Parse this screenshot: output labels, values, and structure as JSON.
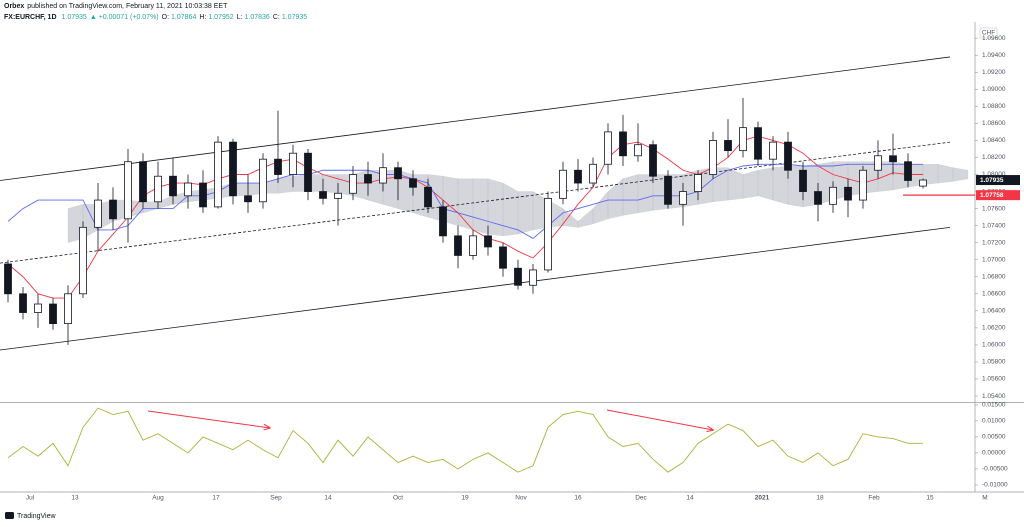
{
  "header": {
    "publisher": "Orbex",
    "published": "published on TradingView.com, February 11, 2021 10:03:38 EET",
    "symbol": "FX:EURCHF, 1D",
    "last": "1.07935",
    "change": "▲ +0.00071 (+0.07%)",
    "ohlc_labels": [
      "O:",
      "H:",
      "L:",
      "C:"
    ],
    "ohlc_values": [
      "1.07864",
      "1.07952",
      "1.07836",
      "1.07935"
    ]
  },
  "footer": {
    "brand": "TradingView"
  },
  "chart_data": {
    "type": "candlestick",
    "currency": "CHF",
    "up_color": "#ffffff",
    "down_color": "#131722",
    "ohlc": [
      [
        1.0695,
        1.07,
        1.065,
        1.066
      ],
      [
        1.066,
        1.0668,
        1.063,
        1.0638
      ],
      [
        1.0638,
        1.066,
        1.062,
        1.0648
      ],
      [
        1.0648,
        1.0655,
        1.0618,
        1.0625
      ],
      [
        1.0625,
        1.067,
        1.06,
        1.066
      ],
      [
        1.066,
        1.0745,
        1.0655,
        1.0738
      ],
      [
        1.0738,
        1.079,
        1.071,
        1.077
      ],
      [
        1.077,
        1.0785,
        1.0735,
        1.0748
      ],
      [
        1.0748,
        1.083,
        1.072,
        1.0815
      ],
      [
        1.0815,
        1.0825,
        1.076,
        1.0768
      ],
      [
        1.0768,
        1.0815,
        1.076,
        1.0798
      ],
      [
        1.0798,
        1.082,
        1.0765,
        1.0775
      ],
      [
        1.0775,
        1.08,
        1.076,
        1.079
      ],
      [
        1.079,
        1.0805,
        1.0755,
        1.0762
      ],
      [
        1.0762,
        1.0845,
        1.076,
        1.0838
      ],
      [
        1.0838,
        1.0842,
        1.0765,
        1.0775
      ],
      [
        1.0775,
        1.08,
        1.0755,
        1.0768
      ],
      [
        1.0768,
        1.0825,
        1.076,
        1.0818
      ],
      [
        1.0818,
        1.0875,
        1.079,
        1.08
      ],
      [
        1.08,
        1.0835,
        1.0785,
        1.0825
      ],
      [
        1.0825,
        1.083,
        1.077,
        1.078
      ],
      [
        1.078,
        1.0795,
        1.0765,
        1.0772
      ],
      [
        1.0772,
        1.079,
        1.074,
        1.0778
      ],
      [
        1.0778,
        1.081,
        1.077,
        1.08
      ],
      [
        1.08,
        1.0815,
        1.0775,
        1.079
      ],
      [
        1.079,
        1.0825,
        1.078,
        1.0808
      ],
      [
        1.0808,
        1.0815,
        1.077,
        1.0795
      ],
      [
        1.0795,
        1.0805,
        1.0775,
        1.0785
      ],
      [
        1.0785,
        1.0795,
        1.0755,
        1.0762
      ],
      [
        1.0762,
        1.077,
        1.072,
        1.0728
      ],
      [
        1.0728,
        1.074,
        1.069,
        1.0705
      ],
      [
        1.0705,
        1.0735,
        1.07,
        1.0728
      ],
      [
        1.0728,
        1.074,
        1.0705,
        1.0715
      ],
      [
        1.0715,
        1.072,
        1.068,
        1.069
      ],
      [
        1.069,
        1.07,
        1.0665,
        1.067
      ],
      [
        1.067,
        1.0695,
        1.066,
        1.0688
      ],
      [
        1.0688,
        1.078,
        1.0685,
        1.0772
      ],
      [
        1.0772,
        1.0815,
        1.0765,
        1.0805
      ],
      [
        1.0805,
        1.0818,
        1.078,
        1.079
      ],
      [
        1.079,
        1.082,
        1.0785,
        1.0812
      ],
      [
        1.0812,
        1.086,
        1.08,
        1.085
      ],
      [
        1.085,
        1.087,
        1.081,
        1.0822
      ],
      [
        1.0822,
        1.086,
        1.0815,
        1.0835
      ],
      [
        1.0835,
        1.084,
        1.079,
        1.0798
      ],
      [
        1.0798,
        1.0805,
        1.076,
        1.0765
      ],
      [
        1.0765,
        1.079,
        1.074,
        1.078
      ],
      [
        1.078,
        1.0805,
        1.077,
        1.08
      ],
      [
        1.08,
        1.085,
        1.0795,
        1.084
      ],
      [
        1.084,
        1.0865,
        1.082,
        1.0828
      ],
      [
        1.0828,
        1.089,
        1.082,
        1.0855
      ],
      [
        1.0855,
        1.0862,
        1.081,
        1.0818
      ],
      [
        1.0818,
        1.0845,
        1.0805,
        1.0838
      ],
      [
        1.0838,
        1.085,
        1.0795,
        1.0805
      ],
      [
        1.0805,
        1.0815,
        1.077,
        1.078
      ],
      [
        1.078,
        1.079,
        1.0745,
        1.0765
      ],
      [
        1.0765,
        1.0792,
        1.0755,
        1.0785
      ],
      [
        1.0785,
        1.0795,
        1.075,
        1.077
      ],
      [
        1.077,
        1.081,
        1.076,
        1.0805
      ],
      [
        1.0805,
        1.084,
        1.0795,
        1.0822
      ],
      [
        1.0822,
        1.0848,
        1.08,
        1.0815
      ],
      [
        1.0815,
        1.0825,
        1.0785,
        1.0793
      ],
      [
        1.07864,
        1.07952,
        1.07836,
        1.07935
      ]
    ],
    "lines": [
      {
        "color": "#f23645",
        "values": [
          1.0695,
          1.068,
          1.066,
          1.0655,
          1.0655,
          1.068,
          1.071,
          1.073,
          1.075,
          1.0775,
          1.0785,
          1.079,
          1.079,
          1.0788,
          1.0795,
          1.08,
          1.08,
          1.0808,
          1.0815,
          1.0818,
          1.0808,
          1.08,
          1.0795,
          1.079,
          1.079,
          1.0795,
          1.0797,
          1.0795,
          1.0785,
          1.077,
          1.0755,
          1.0735,
          1.0725,
          1.072,
          1.071,
          1.0702,
          1.072,
          1.0742,
          1.0765,
          1.0785,
          1.082,
          1.0835,
          1.0838,
          1.083,
          1.0818,
          1.0805,
          1.08,
          1.0808,
          1.082,
          1.084,
          1.0845,
          1.084,
          1.0835,
          1.0825,
          1.081,
          1.08,
          1.0795,
          1.079,
          1.0795,
          1.0802,
          1.08,
          1.08
        ]
      },
      {
        "color": "#5b6af0",
        "values": [
          1.0745,
          1.076,
          1.077,
          1.077,
          1.077,
          1.077,
          1.0735,
          1.0735,
          1.074,
          1.076,
          1.076,
          1.076,
          1.0775,
          1.0775,
          1.078,
          1.079,
          1.079,
          1.079,
          1.0795,
          1.08,
          1.08,
          1.0805,
          1.0805,
          1.0805,
          1.0805,
          1.08,
          1.08,
          1.0795,
          1.079,
          1.076,
          1.0755,
          1.075,
          1.0745,
          1.074,
          1.0735,
          1.0725,
          1.074,
          1.0755,
          1.076,
          1.0765,
          1.077,
          1.077,
          1.077,
          1.0775,
          1.0775,
          1.0775,
          1.078,
          1.0795,
          1.0805,
          1.081,
          1.0812,
          1.0812,
          1.0812,
          1.081,
          1.081,
          1.081,
          1.0812,
          1.0812,
          1.0812,
          1.0812,
          1.0812,
          1.0812
        ]
      }
    ],
    "cloud": {
      "color": "#b2b5be",
      "upper": [
        null,
        null,
        null,
        null,
        1.076,
        1.0765,
        1.0765,
        1.077,
        1.077,
        1.0768,
        1.0768,
        1.0775,
        1.078,
        1.0782,
        1.0785,
        1.079,
        1.079,
        1.079,
        1.0795,
        1.0798,
        1.08,
        1.08,
        1.08,
        1.08,
        1.0805,
        1.0805,
        1.0805,
        1.08,
        1.08,
        1.0798,
        1.0795,
        1.0795,
        1.0795,
        1.079,
        1.078,
        1.078,
        1.077,
        1.076,
        1.0745,
        1.076,
        1.078,
        1.0795,
        1.08,
        1.08,
        1.08,
        1.08,
        1.0805,
        1.0808,
        1.0808,
        1.08,
        1.0805,
        1.0808,
        1.081,
        1.081,
        1.0812,
        1.0815,
        1.0815,
        1.0815,
        1.0815,
        1.0815,
        1.0812,
        1.0812,
        1.0812,
        1.0808,
        1.0805
      ],
      "lower": [
        null,
        null,
        null,
        null,
        1.072,
        1.0725,
        1.0735,
        1.0745,
        1.075,
        1.0755,
        1.076,
        1.0765,
        1.0768,
        1.077,
        1.0772,
        1.0775,
        1.0775,
        1.0778,
        1.0778,
        1.078,
        1.078,
        1.078,
        1.0778,
        1.0775,
        1.077,
        1.0765,
        1.076,
        1.0755,
        1.075,
        1.0745,
        1.074,
        1.0735,
        1.073,
        1.0728,
        1.073,
        1.0735,
        1.0738,
        1.074,
        1.0738,
        1.0742,
        1.0748,
        1.0752,
        1.0755,
        1.0758,
        1.076,
        1.0762,
        1.0765,
        1.0768,
        1.077,
        1.0772,
        1.0775,
        1.077,
        1.0765,
        1.0762,
        1.0765,
        1.077,
        1.0775,
        1.0778,
        1.078,
        1.0782,
        1.0785,
        1.0788,
        1.079,
        1.0792,
        1.0795
      ]
    },
    "channel": [
      {
        "values": [
          1.0793,
          1.0938
        ],
        "dashed": false
      },
      {
        "values": [
          1.0696,
          1.0838
        ],
        "dashed": true
      },
      {
        "values": [
          1.0594,
          1.0738
        ],
        "dashed": false
      }
    ],
    "hline": {
      "value": 1.07758,
      "color": "#f23645"
    },
    "oscillator": {
      "axis": "y2",
      "color": "#a8b43c",
      "values": [
        -0.0015,
        0.002,
        -0.001,
        0.003,
        -0.004,
        0.008,
        0.014,
        0.012,
        0.013,
        0.004,
        0.006,
        0.003,
        0.0,
        0.005,
        0.003,
        0.001,
        0.004,
        0.001,
        -0.0015,
        0.007,
        0.003,
        -0.003,
        0.004,
        -0.001,
        0.005,
        0.001,
        -0.003,
        -0.001,
        -0.003,
        -0.002,
        -0.005,
        -0.002,
        0.0,
        -0.003,
        -0.006,
        -0.004,
        0.008,
        0.012,
        0.013,
        0.012,
        0.005,
        0.002,
        0.003,
        -0.002,
        -0.006,
        -0.003,
        0.003,
        0.006,
        0.009,
        0.007,
        0.002,
        0.004,
        -0.001,
        -0.003,
        0.0,
        -0.004,
        -0.002,
        0.006,
        0.005,
        0.0045,
        0.003,
        0.003
      ]
    },
    "ylim": [
      1.0533,
      1.0979
    ],
    "yticks": [
      {
        "value": 1.054,
        "label": "1.05400"
      },
      {
        "value": 1.056,
        "label": "1.05600"
      },
      {
        "value": 1.058,
        "label": "1.05800"
      },
      {
        "value": 1.06,
        "label": "1.06000"
      },
      {
        "value": 1.062,
        "label": "1.06200"
      },
      {
        "value": 1.064,
        "label": "1.06400"
      },
      {
        "value": 1.066,
        "label": "1.06600"
      },
      {
        "value": 1.068,
        "label": "1.06800"
      },
      {
        "value": 1.07,
        "label": "1.07000"
      },
      {
        "value": 1.072,
        "label": "1.07200"
      },
      {
        "value": 1.074,
        "label": "1.07400"
      },
      {
        "value": 1.076,
        "label": "1.07600"
      },
      {
        "value": 1.078,
        "label": "1.07800"
      },
      {
        "value": 1.08,
        "label": "1.08000"
      },
      {
        "value": 1.082,
        "label": "1.08200"
      },
      {
        "value": 1.084,
        "label": "1.08400"
      },
      {
        "value": 1.086,
        "label": "1.08600"
      },
      {
        "value": 1.088,
        "label": "1.08800"
      },
      {
        "value": 1.09,
        "label": "1.09000"
      },
      {
        "value": 1.092,
        "label": "1.09200"
      },
      {
        "value": 1.094,
        "label": "1.09400"
      },
      {
        "value": 1.096,
        "label": "1.09600"
      }
    ],
    "y2lim": [
      -0.0122,
      0.0156
    ],
    "y2ticks": [
      {
        "value": 0.015,
        "label": "0.01500"
      },
      {
        "value": 0.01,
        "label": "0.01000"
      },
      {
        "value": 0.005,
        "label": "0.00500"
      },
      {
        "value": 0,
        "label": "0.00000"
      },
      {
        "value": -0.005,
        "label": "-0.00500"
      },
      {
        "value": -0.01,
        "label": "-0.01000"
      }
    ],
    "x_labels": [
      "Jul",
      "13",
      "Aug",
      "17",
      "Sep",
      "14",
      "Oct",
      "19",
      "Nov",
      "16",
      "Dec",
      "14",
      "2021",
      "18",
      "Feb",
      "15",
      "M"
    ]
  }
}
